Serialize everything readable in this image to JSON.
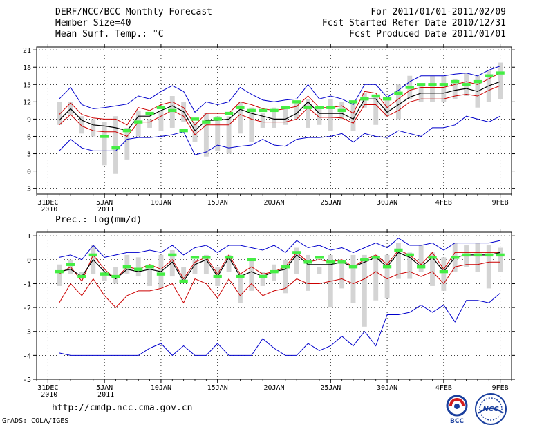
{
  "header_left": [
    "DERF/NCC/BCC Monthly Forecast",
    "Member Size=40",
    "Mean Surf. Temp.: °C"
  ],
  "header_right": [
    "For 2011/01/01-2011/02/09",
    "Fcst Started Refer Date 2010/12/31",
    "Fcst Produced Date 2011/01/01"
  ],
  "footer_url": "http://cmdp.ncc.cma.gov.cn",
  "grads_credit": "GrADS: COLA/IGES",
  "logos": {
    "bcc": "BCC",
    "ncc": "NCC"
  },
  "colors": {
    "max": "#0000cc",
    "min": "#0000cc",
    "upper": "#cc0000",
    "lower": "#cc0000",
    "mean": "#000000",
    "box": "#d4d4d4",
    "obs": "#44ee44"
  },
  "chart_data": [
    {
      "type": "line",
      "title": "Mean Surf. Temp.: °C",
      "x_tick_labels": [
        "31DEC\n2010",
        "5JAN\n2011",
        "10JAN",
        "15JAN",
        "20JAN",
        "25JAN",
        "30JAN",
        "4FEB",
        "9FEB"
      ],
      "x_tick_days": [
        0,
        5,
        10,
        15,
        20,
        25,
        30,
        35,
        40
      ],
      "xlim": [
        -1,
        41
      ],
      "ylim": [
        -4,
        21.5
      ],
      "y_ticks": [
        -3,
        0,
        3,
        6,
        9,
        12,
        15,
        18,
        21
      ],
      "days": [
        1,
        2,
        3,
        4,
        5,
        6,
        7,
        8,
        9,
        10,
        11,
        12,
        13,
        14,
        15,
        16,
        17,
        18,
        19,
        20,
        21,
        22,
        23,
        24,
        25,
        26,
        27,
        28,
        29,
        30,
        31,
        32,
        33,
        34,
        35,
        36,
        37,
        38,
        39,
        40
      ],
      "series": [
        {
          "name": "max",
          "values": [
            12.5,
            14.5,
            11.5,
            10.8,
            11.0,
            11.3,
            11.6,
            13.0,
            12.5,
            13.8,
            14.8,
            13.8,
            10.2,
            12.0,
            11.5,
            12.0,
            14.5,
            13.3,
            12.3,
            12.0,
            12.3,
            12.5,
            15.0,
            12.5,
            13.0,
            12.5,
            11.5,
            15.0,
            15.0,
            12.8,
            14.0,
            15.5,
            16.5,
            16.5,
            16.5,
            16.8,
            17.0,
            16.5,
            17.5,
            18.2
          ]
        },
        {
          "name": "upper",
          "values": [
            9.8,
            11.8,
            9.8,
            9.2,
            9.0,
            9.0,
            8.0,
            11.0,
            10.5,
            11.5,
            12.0,
            11.0,
            8.0,
            10.0,
            10.0,
            10.0,
            12.0,
            11.5,
            10.8,
            10.5,
            10.8,
            11.2,
            13.0,
            11.0,
            11.0,
            11.3,
            10.0,
            13.8,
            13.5,
            11.0,
            12.5,
            14.0,
            14.5,
            14.5,
            14.5,
            15.0,
            15.5,
            15.0,
            16.0,
            17.0
          ]
        },
        {
          "name": "mean",
          "values": [
            8.8,
            10.8,
            8.8,
            8.0,
            7.8,
            7.5,
            7.0,
            9.5,
            9.5,
            10.5,
            11.3,
            10.3,
            7.0,
            8.8,
            8.8,
            9.0,
            10.7,
            10.0,
            9.5,
            9.0,
            9.0,
            10.0,
            12.0,
            10.0,
            10.0,
            10.0,
            9.0,
            12.5,
            12.5,
            10.2,
            11.5,
            12.8,
            13.5,
            13.5,
            13.5,
            14.0,
            14.3,
            13.8,
            14.8,
            15.5
          ]
        },
        {
          "name": "lower",
          "values": [
            8.0,
            9.8,
            7.8,
            7.0,
            6.8,
            6.8,
            6.0,
            8.5,
            8.5,
            9.5,
            10.5,
            9.5,
            6.3,
            8.0,
            8.0,
            8.0,
            9.8,
            9.0,
            8.5,
            8.5,
            8.5,
            9.0,
            11.0,
            9.3,
            9.3,
            9.2,
            8.3,
            11.5,
            11.5,
            9.5,
            10.5,
            12.0,
            12.5,
            12.5,
            12.5,
            13.0,
            13.3,
            13.0,
            14.0,
            14.8
          ]
        },
        {
          "name": "min",
          "values": [
            3.5,
            5.5,
            4.0,
            3.5,
            3.5,
            3.5,
            5.5,
            5.8,
            5.8,
            6.0,
            6.3,
            6.8,
            2.8,
            3.3,
            4.5,
            4.0,
            4.3,
            4.5,
            5.5,
            4.5,
            4.3,
            5.5,
            5.8,
            5.8,
            6.0,
            6.5,
            5.0,
            6.5,
            6.0,
            5.8,
            7.0,
            6.5,
            6.0,
            7.5,
            7.5,
            8.0,
            9.5,
            9.0,
            8.5,
            9.5
          ]
        }
      ],
      "boxes": [
        [
          8.0,
          12.0
        ],
        [
          9.8,
          12.0
        ],
        [
          6.5,
          9.5
        ],
        [
          6.0,
          9.0
        ],
        [
          1.0,
          8.5
        ],
        [
          -0.5,
          9.5
        ],
        [
          2.0,
          7.5
        ],
        [
          6.0,
          10.5
        ],
        [
          7.5,
          9.0
        ],
        [
          7.0,
          10.5
        ],
        [
          7.5,
          13.0
        ],
        [
          8.5,
          12.0
        ],
        [
          5.0,
          8.5
        ],
        [
          2.5,
          10.0
        ],
        [
          3.5,
          9.5
        ],
        [
          3.0,
          9.5
        ],
        [
          6.5,
          12.0
        ],
        [
          5.0,
          11.0
        ],
        [
          7.5,
          10.0
        ],
        [
          7.5,
          11.0
        ],
        [
          8.0,
          11.0
        ],
        [
          9.0,
          12.0
        ],
        [
          7.5,
          12.5
        ],
        [
          8.0,
          11.0
        ],
        [
          7.0,
          12.5
        ],
        [
          9.0,
          12.0
        ],
        [
          7.0,
          12.0
        ],
        [
          11.0,
          13.5
        ],
        [
          8.0,
          13.0
        ],
        [
          9.5,
          12.5
        ],
        [
          9.0,
          15.0
        ],
        [
          12.5,
          16.5
        ],
        [
          12.0,
          15.0
        ],
        [
          12.0,
          16.5
        ],
        [
          12.0,
          16.5
        ],
        [
          12.5,
          16.0
        ],
        [
          13.0,
          17.0
        ],
        [
          11.0,
          16.5
        ],
        [
          12.0,
          17.5
        ],
        [
          12.5,
          18.8
        ]
      ],
      "obs": [
        null,
        null,
        null,
        null,
        6.0,
        4.0,
        7.0,
        8.5,
        10.0,
        11.0,
        10.5,
        7.0,
        9.0,
        8.5,
        9.0,
        10.0,
        11.0,
        10.5,
        10.5,
        10.5,
        11.0,
        12.0,
        11.0,
        11.0,
        11.0,
        10.5,
        12.0,
        12.5,
        13.0,
        12.5,
        13.5,
        14.5,
        15.0,
        15.0,
        15.0,
        15.5,
        15.0,
        15.5,
        16.5,
        17.0
      ]
    },
    {
      "type": "line",
      "title": "Prec.: log(mm/d)",
      "x_tick_labels": [
        "31DEC\n2010",
        "5JAN\n2011",
        "10JAN",
        "15JAN",
        "20JAN",
        "25JAN",
        "30JAN",
        "4FEB",
        "9FEB"
      ],
      "x_tick_days": [
        0,
        5,
        10,
        15,
        20,
        25,
        30,
        35,
        40
      ],
      "xlim": [
        -1,
        41
      ],
      "ylim": [
        -5,
        1.15
      ],
      "y_ticks": [
        -5,
        -4,
        -3,
        -2,
        -1,
        0,
        1
      ],
      "days": [
        1,
        2,
        3,
        4,
        5,
        6,
        7,
        8,
        9,
        10,
        11,
        12,
        13,
        14,
        15,
        16,
        17,
        18,
        19,
        20,
        21,
        22,
        23,
        24,
        25,
        26,
        27,
        28,
        29,
        30,
        31,
        32,
        33,
        34,
        35,
        36,
        37,
        38,
        39,
        40
      ],
      "series": [
        {
          "name": "max",
          "values": [
            0.1,
            0.2,
            0.0,
            0.6,
            0.1,
            0.2,
            0.3,
            0.3,
            0.4,
            0.3,
            0.6,
            0.2,
            0.5,
            0.6,
            0.3,
            0.6,
            0.6,
            0.5,
            0.4,
            0.6,
            0.3,
            0.8,
            0.5,
            0.6,
            0.4,
            0.5,
            0.3,
            0.5,
            0.7,
            0.5,
            0.9,
            0.6,
            0.6,
            0.7,
            0.4,
            0.7,
            0.7,
            0.7,
            0.7,
            0.8
          ]
        },
        {
          "name": "upper",
          "values": [
            -0.6,
            -0.3,
            -0.9,
            0.2,
            -0.4,
            -0.8,
            -0.3,
            -0.4,
            -0.2,
            -0.4,
            0.0,
            -0.8,
            -0.1,
            0.1,
            -0.6,
            0.2,
            -0.6,
            -0.3,
            -0.6,
            -0.5,
            -0.3,
            0.3,
            -0.1,
            0.0,
            -0.1,
            0.0,
            -0.3,
            0.0,
            0.2,
            -0.2,
            0.4,
            0.2,
            -0.2,
            0.3,
            -0.4,
            0.3,
            0.3,
            0.3,
            0.3,
            0.3
          ]
        },
        {
          "name": "mean",
          "values": [
            -0.5,
            -0.4,
            -0.7,
            0.0,
            -0.5,
            -0.8,
            -0.4,
            -0.5,
            -0.4,
            -0.5,
            -0.1,
            -0.9,
            -0.2,
            0.0,
            -0.7,
            0.1,
            -0.7,
            -0.5,
            -0.7,
            -0.5,
            -0.4,
            0.2,
            -0.2,
            -0.2,
            -0.2,
            -0.1,
            -0.3,
            -0.1,
            0.1,
            -0.3,
            0.3,
            0.1,
            -0.3,
            0.1,
            -0.5,
            0.1,
            0.2,
            0.2,
            0.2,
            0.3
          ]
        },
        {
          "name": "lower",
          "values": [
            -1.8,
            -1.0,
            -1.5,
            -0.8,
            -1.5,
            -2.0,
            -1.5,
            -1.3,
            -1.3,
            -1.2,
            -1.0,
            -1.8,
            -0.8,
            -1.0,
            -1.6,
            -0.8,
            -1.5,
            -1.0,
            -1.5,
            -1.3,
            -1.2,
            -0.8,
            -1.0,
            -1.0,
            -0.9,
            -0.8,
            -1.0,
            -0.8,
            -0.5,
            -0.8,
            -0.6,
            -0.5,
            -0.7,
            -0.5,
            -1.0,
            -0.3,
            -0.2,
            -0.2,
            -0.1,
            -0.1
          ]
        },
        {
          "name": "min",
          "values": [
            -3.9,
            -4.0,
            -4.0,
            -4.0,
            -4.0,
            -4.0,
            -4.0,
            -4.0,
            -3.7,
            -3.5,
            -4.0,
            -3.6,
            -4.0,
            -4.0,
            -3.5,
            -4.0,
            -4.0,
            -4.0,
            -3.3,
            -3.7,
            -4.0,
            -4.0,
            -3.5,
            -3.8,
            -3.6,
            -3.2,
            -3.6,
            -3.0,
            -3.6,
            -2.3,
            -2.3,
            -2.2,
            -1.9,
            -2.2,
            -1.9,
            -2.6,
            -1.7,
            -1.7,
            -1.8,
            -1.4
          ]
        },
        {
          "name": "lower_extra",
          "values": []
        }
      ],
      "boxes": [
        [
          -1.1,
          -0.2
        ],
        [
          -0.6,
          0.0
        ],
        [
          -0.8,
          -0.5
        ],
        [
          -0.6,
          0.6
        ],
        [
          -0.9,
          -0.5
        ],
        [
          -1.0,
          -0.3
        ],
        [
          -0.6,
          0.2
        ],
        [
          -0.7,
          0.1
        ],
        [
          -1.1,
          -0.2
        ],
        [
          -1.2,
          0.2
        ],
        [
          -0.7,
          0.4
        ],
        [
          -0.9,
          -0.3
        ],
        [
          -0.6,
          0.0
        ],
        [
          -0.6,
          0.2
        ],
        [
          -1.1,
          -0.3
        ],
        [
          -0.5,
          0.2
        ],
        [
          -1.8,
          -0.6
        ],
        [
          -1.3,
          0.0
        ],
        [
          -1.1,
          -0.5
        ],
        [
          -0.9,
          -0.2
        ],
        [
          -1.4,
          0.0
        ],
        [
          -0.6,
          0.5
        ],
        [
          -1.3,
          0.2
        ],
        [
          -0.6,
          -0.3
        ],
        [
          -2.0,
          0.2
        ],
        [
          -1.2,
          0.0
        ],
        [
          -1.8,
          0.2
        ],
        [
          -2.8,
          0.2
        ],
        [
          -1.7,
          0.2
        ],
        [
          -1.6,
          0.2
        ],
        [
          -0.8,
          0.7
        ],
        [
          -0.8,
          0.3
        ],
        [
          -0.5,
          0.6
        ],
        [
          -1.1,
          0.3
        ],
        [
          -1.3,
          0.1
        ],
        [
          -0.5,
          0.7
        ],
        [
          -0.3,
          0.6
        ],
        [
          -0.5,
          0.7
        ],
        [
          -1.2,
          0.6
        ],
        [
          -0.5,
          0.5
        ]
      ],
      "obs": [
        -0.5,
        -0.2,
        -0.7,
        0.2,
        -0.6,
        -0.7,
        -0.3,
        -0.4,
        -0.3,
        -0.6,
        0.2,
        -0.9,
        0.1,
        0.1,
        -0.7,
        0.1,
        -0.7,
        0.0,
        -0.7,
        -0.5,
        -0.3,
        0.3,
        -0.1,
        0.1,
        -0.1,
        -0.1,
        -0.3,
        0.0,
        0.1,
        -0.3,
        0.4,
        0.2,
        -0.3,
        0.1,
        -0.5,
        0.1,
        0.2,
        0.2,
        0.2,
        0.2
      ]
    }
  ]
}
